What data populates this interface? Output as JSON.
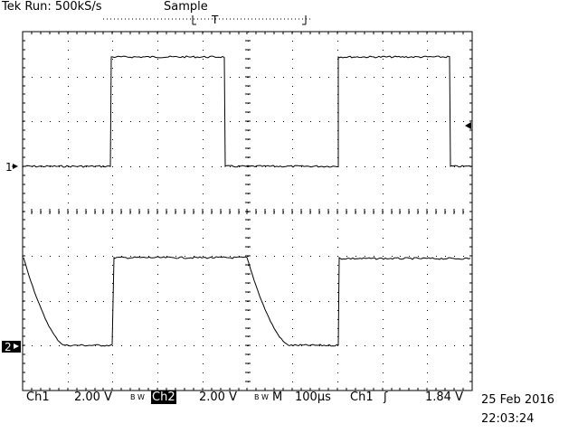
{
  "header": {
    "status": "Tek Run: 500kS/s",
    "mode": "Sample",
    "trigger_marker": "T"
  },
  "channels": [
    {
      "marker": "1",
      "label": "Ch1",
      "scale": "2.00 V",
      "bw_symbol": "B W"
    },
    {
      "marker": "2",
      "label": "Ch2",
      "scale": "2.00 V",
      "bw_symbol": "B W"
    }
  ],
  "timebase": {
    "label": "M",
    "value": "100µs"
  },
  "trigger": {
    "source": "Ch1",
    "slope_symbol": "ʃ",
    "level": "1.84 V"
  },
  "timestamp": {
    "date": "25 Feb 2016",
    "time": "22:03:24"
  },
  "colors": {
    "trace": "#000000",
    "grid": "#000000",
    "background": "#ffffff"
  },
  "icons": {
    "ch_marker": "arrow-right-icon",
    "trigger_level": "arrow-left-icon"
  }
}
